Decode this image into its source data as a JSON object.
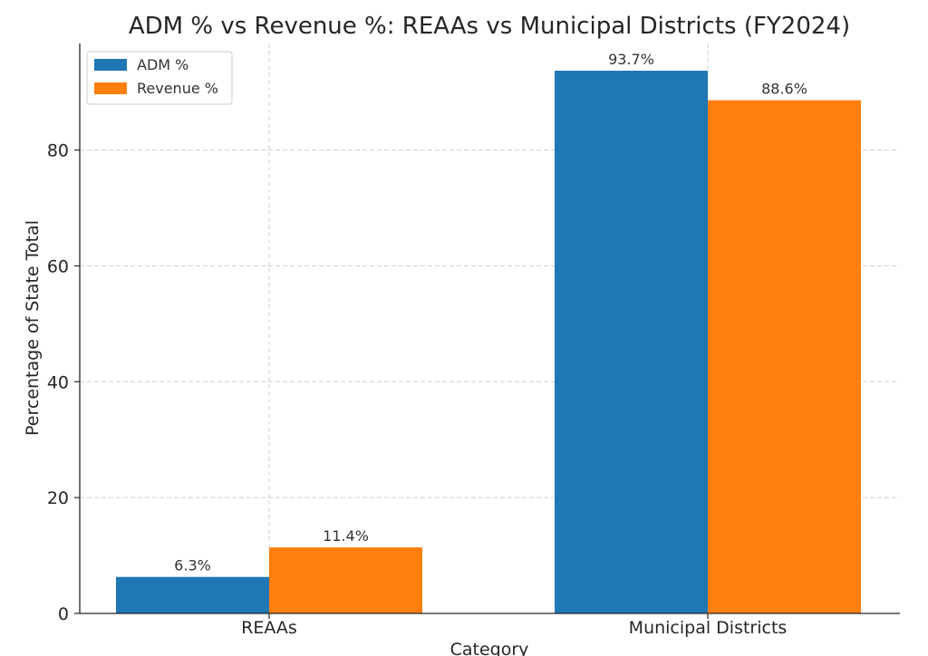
{
  "chart_data": {
    "type": "bar",
    "title": "ADM % vs Revenue %: REAAs vs Municipal Districts (FY2024)",
    "xlabel": "Category",
    "ylabel": "Percentage of State Total",
    "categories": [
      "REAAs",
      "Municipal Districts"
    ],
    "series": [
      {
        "name": "ADM %",
        "values": [
          6.3,
          93.7
        ],
        "labels": [
          "6.3%",
          "93.7%"
        ],
        "color": "#1f77b4"
      },
      {
        "name": "Revenue %",
        "values": [
          11.4,
          88.6
        ],
        "labels": [
          "11.4%",
          "88.6%"
        ],
        "color": "#ff7f0e"
      }
    ],
    "ylim": [
      0,
      98.4
    ],
    "yticks": [
      0,
      20,
      40,
      60,
      80
    ],
    "grid": true,
    "legend_position": "top-left"
  }
}
